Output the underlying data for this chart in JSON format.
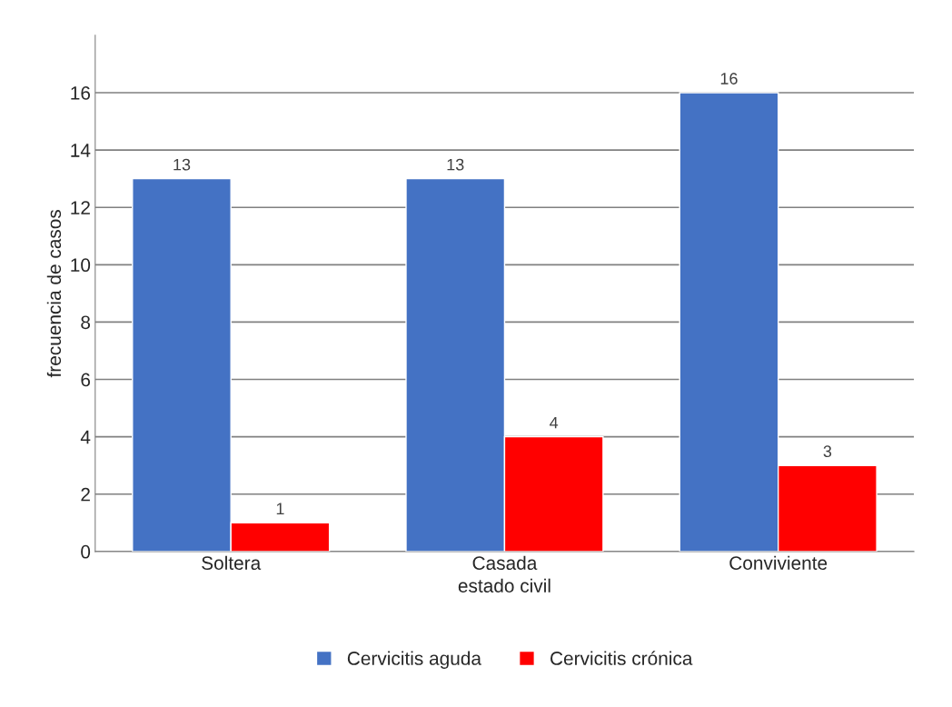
{
  "chart_data": {
    "type": "bar",
    "xlabel": "estado civil",
    "ylabel": "frecuencia de casos",
    "categories": [
      "Soltera",
      "Casada",
      "Conviviente"
    ],
    "series": [
      {
        "name": "Cervicitis aguda",
        "color": "#4472c4",
        "values": [
          13,
          13,
          16
        ]
      },
      {
        "name": "Cervicitis crónica",
        "color": "#ff0000",
        "values": [
          1,
          4,
          3
        ]
      }
    ],
    "ylim": [
      0,
      18
    ],
    "yticks": [
      0,
      2,
      4,
      6,
      8,
      10,
      12,
      14,
      16
    ],
    "grid": "y",
    "legend": "bottom",
    "data_labels": true
  }
}
